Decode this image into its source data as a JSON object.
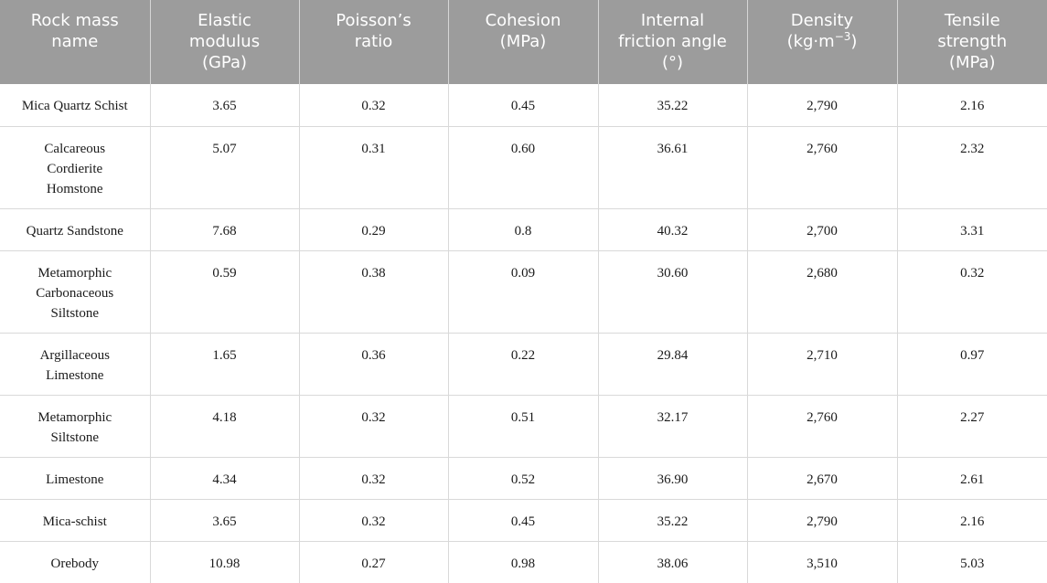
{
  "table": {
    "headers": [
      [
        "Rock mass",
        "name"
      ],
      [
        "Elastic",
        "modulus",
        "(GPa)"
      ],
      [
        "Poisson’s",
        "ratio"
      ],
      [
        "Cohesion",
        "(MPa)"
      ],
      [
        "Internal",
        "friction angle",
        "(°)"
      ],
      [
        "Density",
        "(kg·m",
        "−3",
        ")"
      ],
      [
        "Tensile",
        "strength",
        "(MPa)"
      ]
    ],
    "rows": [
      {
        "name": [
          "Mica Quartz Schist"
        ],
        "values": [
          "3.65",
          "0.32",
          "0.45",
          "35.22",
          "2,790",
          "2.16"
        ]
      },
      {
        "name": [
          "Calcareous",
          "Cordierite",
          "Homstone"
        ],
        "values": [
          "5.07",
          "0.31",
          "0.60",
          "36.61",
          "2,760",
          "2.32"
        ]
      },
      {
        "name": [
          "Quartz Sandstone"
        ],
        "values": [
          "7.68",
          "0.29",
          "0.8",
          "40.32",
          "2,700",
          "3.31"
        ]
      },
      {
        "name": [
          "Metamorphic",
          "Carbonaceous",
          "Siltstone"
        ],
        "values": [
          "0.59",
          "0.38",
          "0.09",
          "30.60",
          "2,680",
          "0.32"
        ]
      },
      {
        "name": [
          "Argillaceous",
          "Limestone"
        ],
        "values": [
          "1.65",
          "0.36",
          "0.22",
          "29.84",
          "2,710",
          "0.97"
        ]
      },
      {
        "name": [
          "Metamorphic",
          "Siltstone"
        ],
        "values": [
          "4.18",
          "0.32",
          "0.51",
          "32.17",
          "2,760",
          "2.27"
        ]
      },
      {
        "name": [
          "Limestone"
        ],
        "values": [
          "4.34",
          "0.32",
          "0.52",
          "36.90",
          "2,670",
          "2.61"
        ]
      },
      {
        "name": [
          "Mica-schist"
        ],
        "values": [
          "3.65",
          "0.32",
          "0.45",
          "35.22",
          "2,790",
          "2.16"
        ]
      },
      {
        "name": [
          "Orebody"
        ],
        "values": [
          "10.98",
          "0.27",
          "0.98",
          "38.06",
          "3,510",
          "5.03"
        ]
      }
    ]
  }
}
